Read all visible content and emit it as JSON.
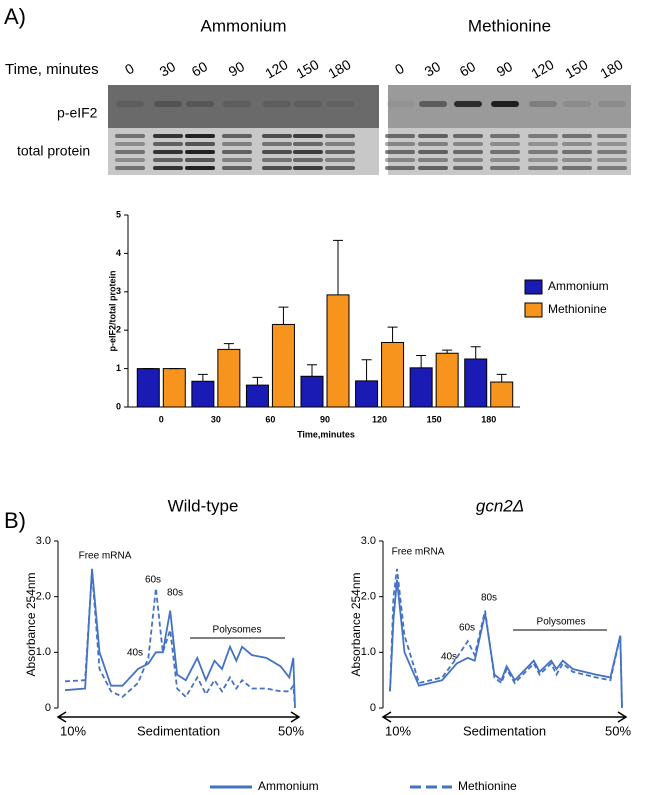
{
  "panel_a": {
    "label": "A)",
    "time_label": "Time, minutes",
    "row_labels": [
      "p-eIF2",
      "total protein"
    ],
    "blots": [
      {
        "title": "Ammonium",
        "times": [
          "0",
          "30",
          "60",
          "90",
          "120",
          "150",
          "180"
        ]
      },
      {
        "title": "Methionine",
        "times": [
          "0",
          "30",
          "60",
          "90",
          "120",
          "150",
          "180"
        ]
      }
    ]
  },
  "panel_b": {
    "label": "B)"
  },
  "chart_data": [
    {
      "type": "bar",
      "y_label": "p-eIF2/total protein",
      "x_label": "Time,minutes",
      "categories": [
        "0",
        "30",
        "60",
        "90",
        "120",
        "150",
        "180"
      ],
      "series": [
        {
          "name": "Ammonium",
          "color": "#1a1ab4",
          "values": [
            1.0,
            0.67,
            0.57,
            0.8,
            0.68,
            1.02,
            1.25
          ],
          "errors": [
            0,
            0.18,
            0.2,
            0.3,
            0.55,
            0.32,
            0.32
          ]
        },
        {
          "name": "Methionine",
          "color": "#f7941d",
          "values": [
            1.0,
            1.5,
            2.15,
            2.92,
            1.68,
            1.4,
            0.65
          ],
          "errors": [
            0,
            0.15,
            0.45,
            1.42,
            0.4,
            0.08,
            0.2
          ]
        }
      ],
      "ylim": [
        0,
        5
      ],
      "yticks": [
        0,
        1,
        2,
        3,
        4,
        5
      ],
      "legend": "right"
    },
    {
      "type": "line",
      "title": "Wild-type",
      "y_label": "Absorbance 254nm",
      "x_label": "Sedimentation",
      "x": [
        10,
        13.5,
        14.7,
        16,
        18,
        20,
        22.7,
        24.5,
        25.8,
        27,
        28.3,
        29.5,
        31,
        33,
        34.5,
        36,
        37.3,
        38.7,
        39.8,
        40.8,
        42.5,
        45,
        47.5,
        49,
        49.7,
        50
      ],
      "series": [
        {
          "name": "Ammonium",
          "color": "#4472c4",
          "line_style": "solid",
          "values": [
            0.32,
            0.35,
            2.5,
            1.0,
            0.4,
            0.4,
            0.7,
            0.8,
            1.0,
            1.0,
            1.75,
            0.6,
            0.5,
            0.9,
            0.5,
            0.85,
            0.7,
            1.1,
            0.85,
            1.1,
            0.95,
            0.9,
            0.75,
            0.55,
            0.9,
            0.0
          ]
        },
        {
          "name": "Methionine",
          "color": "#4472c4",
          "line_style": "dashed",
          "values": [
            0.48,
            0.5,
            2.45,
            0.7,
            0.3,
            0.2,
            0.45,
            0.9,
            2.15,
            1.0,
            1.4,
            0.35,
            0.2,
            0.55,
            0.25,
            0.5,
            0.3,
            0.55,
            0.35,
            0.5,
            0.35,
            0.35,
            0.3,
            0.3,
            0.4,
            0.05
          ]
        }
      ],
      "xlim": [
        10,
        50
      ],
      "xticks": [
        {
          "value": 10,
          "label": "10%"
        },
        {
          "value": 50,
          "label": "50%"
        }
      ],
      "ylim": [
        0,
        3
      ],
      "yticks": [
        0,
        {
          "value": 1,
          "label": "1.0"
        },
        {
          "value": 2,
          "label": "2.0"
        },
        {
          "value": 3,
          "label": "3.0"
        }
      ],
      "annotations": [
        "Free mRNA",
        "60s",
        "80s",
        "40s",
        "Polysomes"
      ],
      "legend": "bottom"
    },
    {
      "type": "line",
      "title": "gcn2Δ",
      "y_label": "Absorbance 254nm",
      "x_label": "Sedimentation",
      "x": [
        10,
        10.6,
        11.2,
        12.5,
        15,
        19,
        21.5,
        23.4,
        24.6,
        26.4,
        28,
        29.2,
        30.1,
        31.5,
        34.8,
        35.8,
        37.8,
        38.7,
        39.8,
        41.5,
        45.5,
        48,
        49.7,
        50
      ],
      "series": [
        {
          "color": "#4472c4",
          "line_style": "solid",
          "values": [
            0.3,
            1.6,
            2.3,
            1.0,
            0.4,
            0.5,
            0.8,
            0.9,
            0.85,
            1.7,
            0.6,
            0.5,
            0.75,
            0.5,
            0.85,
            0.65,
            0.85,
            0.7,
            0.85,
            0.7,
            0.6,
            0.55,
            1.3,
            0.0
          ]
        },
        {
          "color": "#4472c4",
          "line_style": "dashed",
          "values": [
            0.3,
            2.0,
            2.5,
            1.3,
            0.45,
            0.55,
            0.9,
            1.2,
            0.95,
            1.75,
            0.55,
            0.45,
            0.7,
            0.45,
            0.8,
            0.6,
            0.8,
            0.6,
            0.8,
            0.65,
            0.55,
            0.5,
            1.3,
            0.0
          ]
        }
      ],
      "xlim": [
        10,
        50
      ],
      "xticks": [
        {
          "value": 10,
          "label": "10%"
        },
        {
          "value": 50,
          "label": "50%"
        }
      ],
      "ylim": [
        0,
        3
      ],
      "yticks": [
        0,
        {
          "value": 1,
          "label": "1.0"
        },
        {
          "value": 2,
          "label": "2.0"
        },
        {
          "value": 3,
          "label": "3.0"
        }
      ],
      "annotations": [
        "Free mRNA",
        "60s",
        "80s",
        "40s",
        "Polysomes"
      ]
    }
  ]
}
